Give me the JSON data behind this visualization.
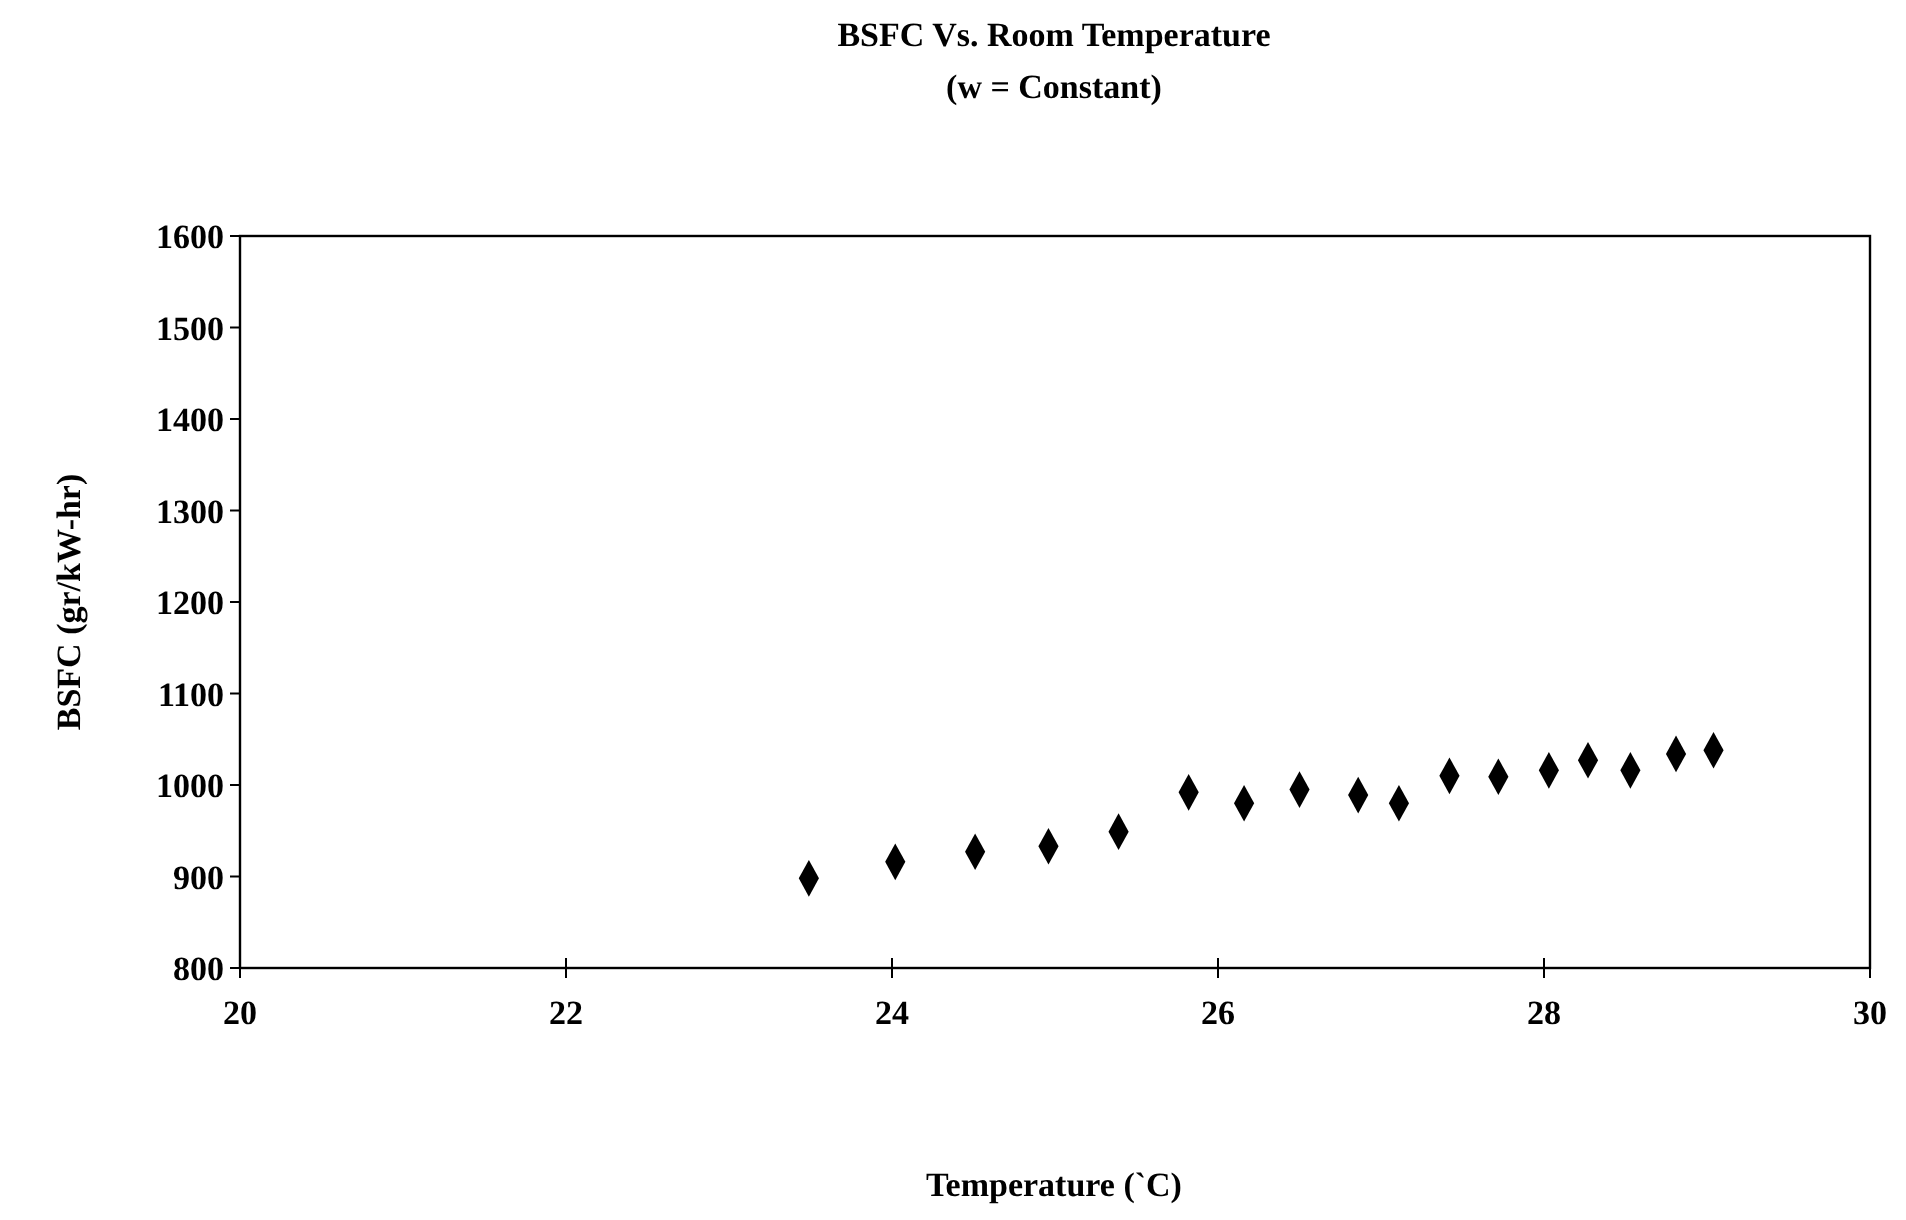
{
  "chart_data": {
    "type": "scatter",
    "title": "BSFC Vs. Room Temperature",
    "subtitle": "(w = Constant)",
    "xlabel": "Temperature (`C)",
    "ylabel": "BSFC (gr/kW-hr)",
    "x": [
      23.49,
      24.02,
      24.51,
      24.96,
      25.39,
      25.82,
      26.16,
      26.5,
      26.86,
      27.11,
      27.42,
      27.72,
      28.03,
      28.27,
      28.53,
      28.81,
      29.04
    ],
    "values": [
      898,
      916,
      927,
      933,
      949,
      992,
      980,
      995,
      989,
      980,
      1010,
      1009,
      1016,
      1027,
      1016,
      1034,
      1038
    ],
    "color": "#000000",
    "marker": "diamond",
    "xlim": [
      20,
      30
    ],
    "xticks": [
      20,
      22,
      24,
      26,
      28,
      30
    ],
    "ylim": [
      800,
      1600
    ],
    "yticks": [
      800,
      900,
      1000,
      1100,
      1200,
      1300,
      1400,
      1500,
      1600
    ],
    "grid": false
  }
}
